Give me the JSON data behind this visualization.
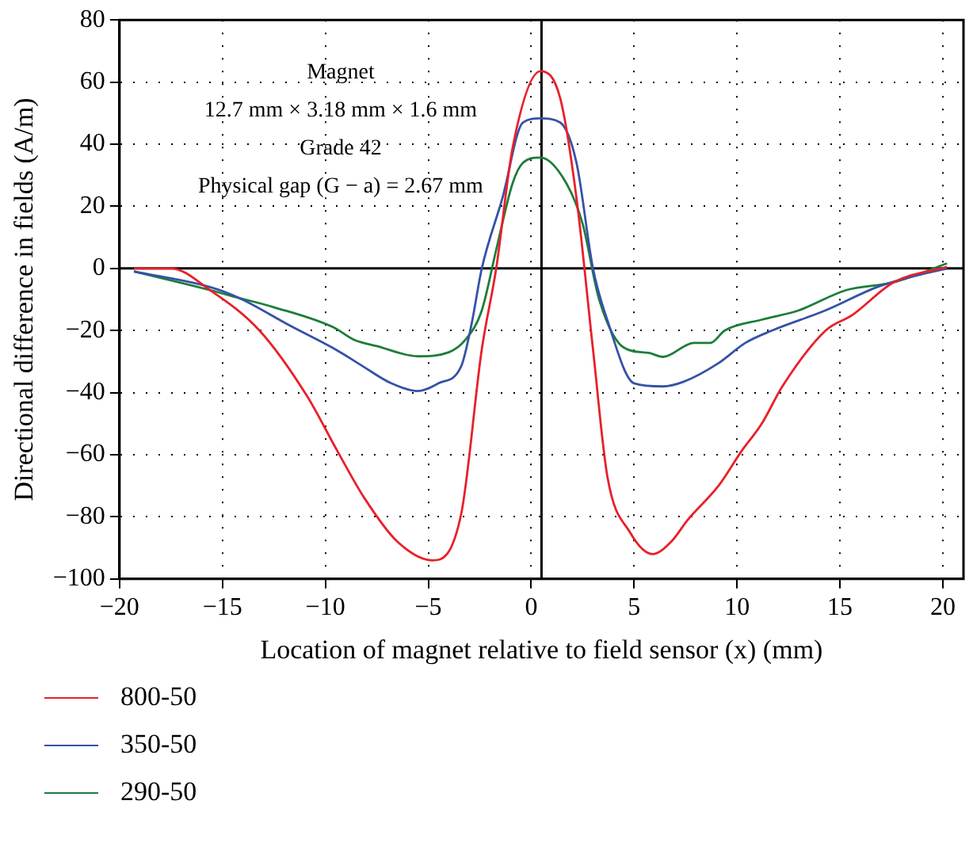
{
  "chart_data": {
    "type": "line",
    "xlabel": "Location of magnet relative to field sensor (x) (mm)",
    "ylabel": "Directional difference in fields (A/m)",
    "xlim": [
      -20,
      21
    ],
    "xticks": [
      {
        "value": -20,
        "label": "−20"
      },
      {
        "value": -15,
        "label": "−15"
      },
      {
        "value": -10,
        "label": "−10"
      },
      {
        "value": -5,
        "label": "−5"
      },
      0,
      5,
      10,
      15,
      20
    ],
    "ylim": [
      -100,
      80
    ],
    "yticks": [
      {
        "value": -100,
        "label": "−100"
      },
      {
        "value": -80,
        "label": "−80"
      },
      {
        "value": -60,
        "label": "−60"
      },
      {
        "value": -40,
        "label": "−40"
      },
      {
        "value": -20,
        "label": "−20"
      },
      0,
      20,
      40,
      60,
      80
    ],
    "grid": true,
    "legend": "bottom left",
    "marker": "none",
    "line_style": "solid",
    "ref_lines": [
      {
        "axis": "y",
        "value": 0,
        "color": "#000000"
      },
      {
        "axis": "x",
        "value": 0.5,
        "color": "#000000"
      }
    ],
    "annotations": [
      "Magnet",
      "12.7 mm × 3.18 mm × 1.6 mm",
      "Grade 42",
      "Physical gap (G − a) = 2.67 mm"
    ],
    "series": [
      {
        "name": "800-50",
        "color": "#e8202a",
        "x": [
          -19.3,
          -17.5,
          -15.6,
          -13.2,
          -10.9,
          -9.4,
          -8.1,
          -6.5,
          -4.8,
          -3.4,
          -2.4,
          -1.7,
          -0.9,
          0.45,
          1.4,
          2.2,
          3.0,
          3.7,
          4.8,
          5.9,
          6.8,
          7.6,
          9.1,
          10.2,
          11.2,
          12.2,
          14.3,
          15.6,
          17.6,
          20.2
        ],
        "values": [
          0,
          0,
          -7,
          -20,
          -41,
          -59,
          -74,
          -88,
          -94,
          -79,
          -26,
          0,
          39,
          63.5,
          55,
          22.6,
          -26,
          -67,
          -85,
          -92,
          -88,
          -81,
          -70,
          -59,
          -50,
          -38,
          -20,
          -15,
          -4.5,
          0.5
        ]
      },
      {
        "name": "350-50",
        "color": "#3552a8",
        "x": [
          -19.3,
          -15.6,
          -14.2,
          -11.7,
          -9.4,
          -8.3,
          -6.8,
          -5.5,
          -4.5,
          -3.4,
          -2.9,
          -2.4,
          -1.4,
          -0.4,
          0.45,
          1.4,
          2.2,
          3.0,
          3.7,
          5.0,
          6.4,
          7.4,
          9.1,
          10.4,
          11.7,
          14.3,
          16.8,
          18.4,
          20.2
        ],
        "values": [
          -1,
          -6,
          -9.5,
          -18.5,
          -26.5,
          -31,
          -37,
          -39.5,
          -37,
          -31.5,
          -18,
          0,
          22.6,
          47,
          48.3,
          47,
          34,
          0,
          -16.7,
          -37,
          -38,
          -36.5,
          -30.5,
          -24,
          -20,
          -13.5,
          -6,
          -2.8,
          0
        ]
      },
      {
        "name": "290-50",
        "color": "#1e7d3a",
        "x": [
          -19.3,
          -15.6,
          -14.2,
          -12.5,
          -9.6,
          -8.6,
          -7.5,
          -5.5,
          -4.0,
          -3.2,
          -2.4,
          -1.7,
          -0.9,
          -0.4,
          0.45,
          1.7,
          2.5,
          3.3,
          4.5,
          5.7,
          6.4,
          7.9,
          8.7,
          9.4,
          11.2,
          13.0,
          15.3,
          17.6,
          20.2
        ],
        "values": [
          -1,
          -7,
          -9.5,
          -12.5,
          -19,
          -23,
          -25,
          -28.3,
          -27,
          -23,
          -13.5,
          6,
          27.5,
          34,
          35.7,
          27.5,
          14.3,
          -10,
          -25.5,
          -27.2,
          -28.5,
          -24,
          -24,
          -20,
          -16.5,
          -13.5,
          -7,
          -4.5,
          1.6
        ]
      }
    ]
  }
}
